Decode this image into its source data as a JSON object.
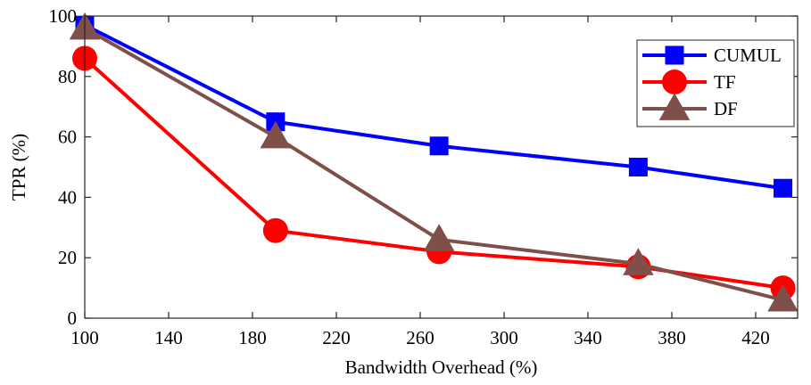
{
  "chart_data": {
    "type": "line",
    "title": "",
    "xlabel": "Bandwidth Overhead (%)",
    "ylabel": "TPR (%)",
    "xlim": [
      100,
      440
    ],
    "ylim": [
      0,
      100
    ],
    "xticks": [
      100,
      140,
      180,
      220,
      260,
      300,
      340,
      380,
      420
    ],
    "yticks": [
      0,
      20,
      40,
      60,
      80,
      100
    ],
    "grid": false,
    "legend_position": "top-right",
    "series": [
      {
        "name": "CUMUL",
        "color": "#0000ff",
        "marker": "square",
        "x": [
          100,
          191,
          269,
          364,
          433
        ],
        "y": [
          97,
          65,
          57,
          50,
          43
        ]
      },
      {
        "name": "TF",
        "color": "#ff0000",
        "marker": "circle",
        "x": [
          100,
          191,
          269,
          364,
          433
        ],
        "y": [
          86,
          29,
          22,
          17,
          10
        ]
      },
      {
        "name": "DF",
        "color": "#7f4f4a",
        "marker": "triangle",
        "x": [
          100,
          191,
          269,
          364,
          433
        ],
        "y": [
          96,
          60,
          26,
          18,
          6
        ]
      }
    ]
  }
}
